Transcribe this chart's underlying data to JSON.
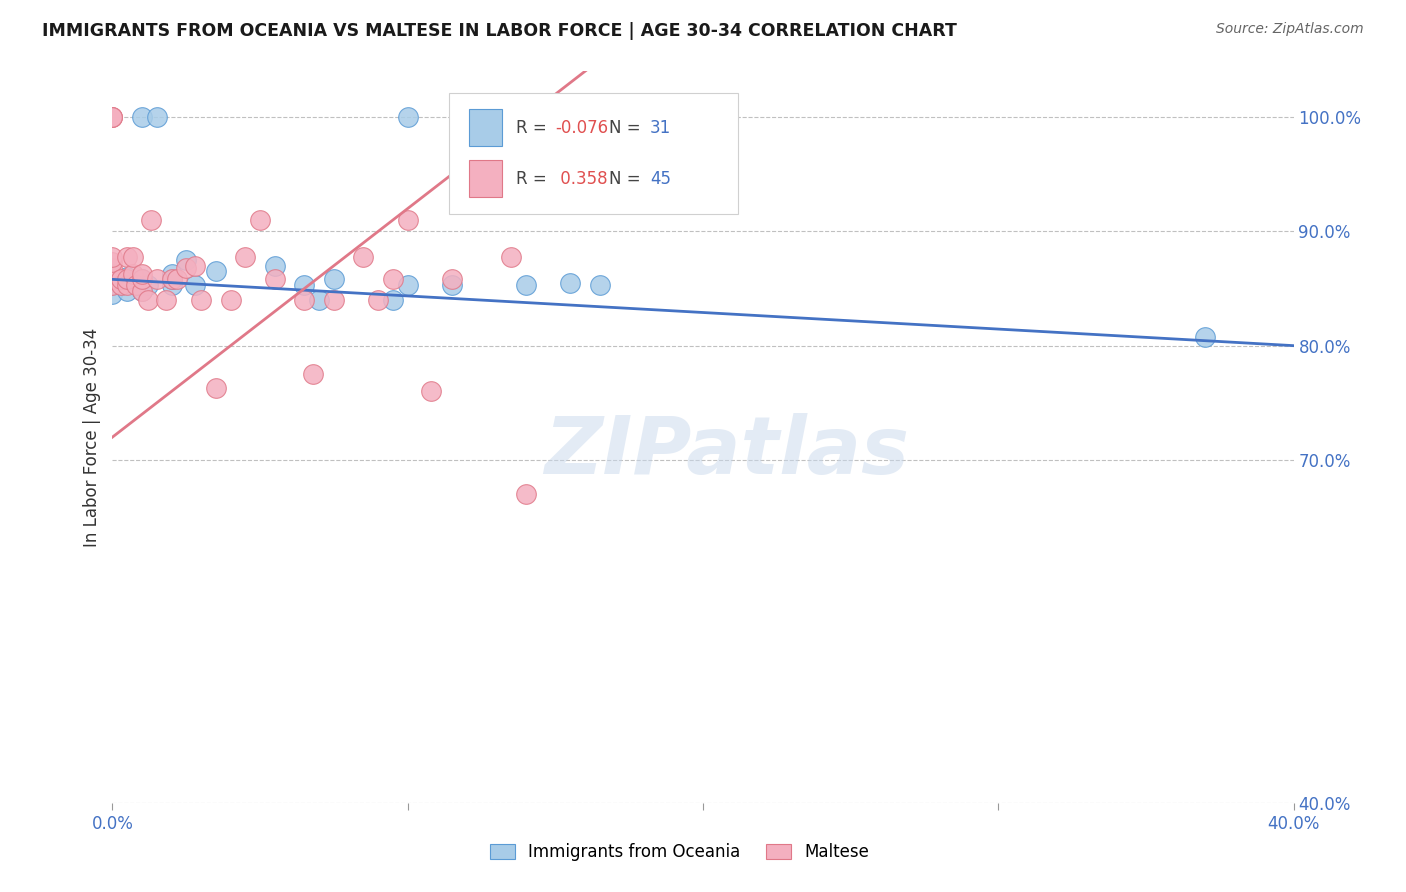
{
  "title": "IMMIGRANTS FROM OCEANIA VS MALTESE IN LABOR FORCE | AGE 30-34 CORRELATION CHART",
  "source": "Source: ZipAtlas.com",
  "xlabel_blue": "Immigrants from Oceania",
  "xlabel_pink": "Maltese",
  "ylabel": "In Labor Force | Age 30-34",
  "R_blue": -0.076,
  "N_blue": 31,
  "R_pink": 0.358,
  "N_pink": 45,
  "xlim": [
    0.0,
    0.4
  ],
  "ylim": [
    0.4,
    1.04
  ],
  "xticks": [
    0.0,
    0.1,
    0.2,
    0.3,
    0.4
  ],
  "xtick_labels": [
    "0.0%",
    "",
    "",
    "",
    "40.0%"
  ],
  "yticks": [
    0.4,
    0.7,
    0.8,
    0.9,
    1.0
  ],
  "ytick_labels": [
    "40.0%",
    "70.0%",
    "80.0%",
    "90.0%",
    "100.0%"
  ],
  "grid_color": "#c0c0c0",
  "bg_color": "#ffffff",
  "blue_fill": "#a8cce8",
  "blue_edge": "#5b9bd5",
  "pink_fill": "#f4b0c0",
  "pink_edge": "#e07888",
  "blue_line": "#4472c4",
  "pink_line": "#e07888",
  "watermark": "ZIPatlas",
  "tick_label_color": "#4472c4",
  "blue_scatter_x": [
    0.0,
    0.0,
    0.0,
    0.0,
    0.003,
    0.005,
    0.005,
    0.008,
    0.01,
    0.01,
    0.01,
    0.012,
    0.015,
    0.02,
    0.02,
    0.02,
    0.025,
    0.028,
    0.035,
    0.055,
    0.065,
    0.07,
    0.075,
    0.095,
    0.1,
    0.1,
    0.115,
    0.14,
    0.155,
    0.165,
    0.37
  ],
  "blue_scatter_y": [
    0.853,
    0.858,
    0.863,
    0.845,
    0.853,
    0.848,
    0.86,
    0.853,
    0.848,
    0.858,
    1.0,
    0.853,
    1.0,
    0.853,
    0.858,
    0.863,
    0.875,
    0.853,
    0.865,
    0.87,
    0.853,
    0.84,
    0.858,
    0.84,
    0.853,
    1.0,
    0.853,
    0.853,
    0.855,
    0.853,
    0.808
  ],
  "pink_scatter_x": [
    0.0,
    0.0,
    0.0,
    0.0,
    0.0,
    0.0,
    0.0,
    0.0,
    0.0,
    0.003,
    0.003,
    0.005,
    0.005,
    0.005,
    0.007,
    0.007,
    0.008,
    0.01,
    0.01,
    0.01,
    0.012,
    0.013,
    0.015,
    0.018,
    0.02,
    0.022,
    0.025,
    0.028,
    0.03,
    0.035,
    0.04,
    0.045,
    0.05,
    0.055,
    0.065,
    0.068,
    0.075,
    0.085,
    0.09,
    0.095,
    0.1,
    0.108,
    0.115,
    0.135,
    0.14
  ],
  "pink_scatter_y": [
    0.853,
    0.858,
    0.863,
    0.868,
    0.873,
    0.878,
    1.0,
    1.0,
    1.0,
    0.853,
    0.858,
    0.853,
    0.858,
    0.878,
    0.863,
    0.878,
    0.853,
    0.848,
    0.858,
    0.863,
    0.84,
    0.91,
    0.858,
    0.84,
    0.858,
    0.858,
    0.868,
    0.87,
    0.84,
    0.763,
    0.84,
    0.878,
    0.91,
    0.858,
    0.84,
    0.775,
    0.84,
    0.878,
    0.84,
    0.858,
    0.91,
    0.76,
    0.858,
    0.878,
    0.67
  ]
}
